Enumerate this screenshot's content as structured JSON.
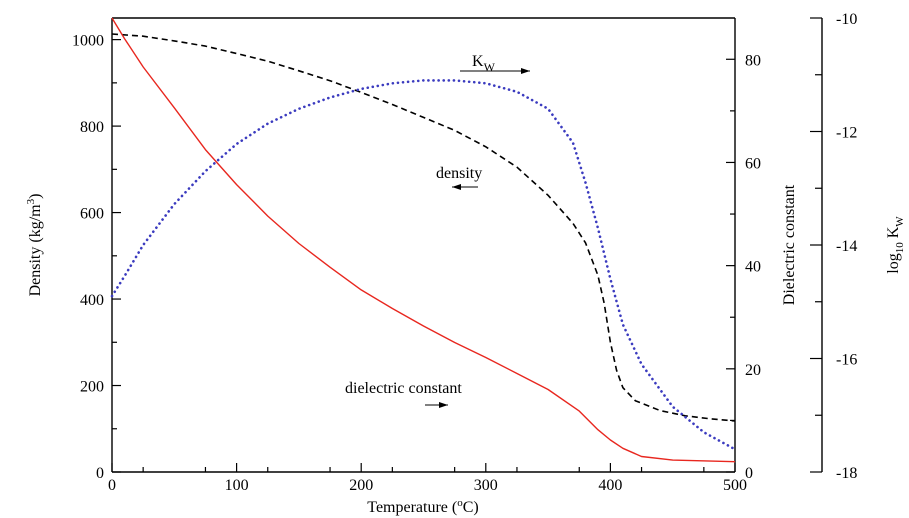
{
  "chart_data": {
    "type": "line",
    "title": "",
    "xlabel": "Temperature (°C)",
    "xlim": [
      0,
      500
    ],
    "x_ticks": [
      "0",
      "100",
      "200",
      "300",
      "400",
      "500"
    ],
    "y_left": {
      "label": "Density (kg/m³)",
      "lim": [
        0,
        1050
      ],
      "ticks": [
        "0",
        "200",
        "400",
        "600",
        "800",
        "1000"
      ]
    },
    "y_right": {
      "label": "Dielectric constant",
      "lim": [
        0,
        88
      ],
      "ticks": [
        "0",
        "20",
        "40",
        "60",
        "80"
      ]
    },
    "y_far_right": {
      "label": "log10 Kw",
      "lim": [
        -18,
        -10
      ],
      "ticks": [
        "-10",
        "-12",
        "-14",
        "-16",
        "-18"
      ]
    },
    "grid": false,
    "legend": "none",
    "series": [
      {
        "name": "density",
        "axis": "left",
        "style": "dashed",
        "color": "#000000",
        "x": [
          0,
          25,
          50,
          75,
          100,
          125,
          150,
          175,
          200,
          225,
          250,
          275,
          300,
          325,
          350,
          370,
          380,
          390,
          395,
          400,
          405,
          410,
          420,
          440,
          460,
          480,
          500
        ],
        "y": [
          1013,
          1008,
          997,
          985,
          968,
          950,
          928,
          905,
          878,
          850,
          820,
          790,
          752,
          705,
          640,
          575,
          530,
          455,
          390,
          300,
          235,
          195,
          165,
          142,
          130,
          123,
          118
        ]
      },
      {
        "name": "dielectric constant",
        "axis": "right",
        "style": "solid",
        "color": "#e8271f",
        "x": [
          0,
          10,
          25,
          50,
          75,
          100,
          125,
          150,
          175,
          200,
          225,
          250,
          275,
          300,
          325,
          350,
          375,
          390,
          400,
          410,
          425,
          450,
          500
        ],
        "y": [
          88,
          84,
          78.5,
          70.6,
          62.5,
          55.7,
          49.6,
          44.3,
          39.7,
          35.3,
          31.7,
          28.3,
          25.1,
          22.2,
          19.1,
          16,
          11.8,
          8.2,
          6.2,
          4.6,
          3,
          2.3,
          2
        ]
      },
      {
        "name": "Kw",
        "axis": "far_right",
        "style": "dotted",
        "color": "#3b3bbf",
        "x": [
          0,
          10,
          25,
          50,
          75,
          100,
          125,
          150,
          175,
          200,
          225,
          250,
          275,
          300,
          325,
          350,
          370,
          380,
          390,
          400,
          410,
          425,
          450,
          475,
          500
        ],
        "y": [
          -14.9,
          -14.55,
          -14.0,
          -13.28,
          -12.7,
          -12.22,
          -11.86,
          -11.6,
          -11.4,
          -11.25,
          -11.15,
          -11.1,
          -11.1,
          -11.15,
          -11.3,
          -11.6,
          -12.2,
          -12.9,
          -13.7,
          -14.6,
          -15.4,
          -16.1,
          -16.85,
          -17.3,
          -17.6
        ]
      }
    ],
    "annotations": [
      {
        "text": "K",
        "sub": "W",
        "arrow": "right"
      },
      {
        "text": "density",
        "arrow": "left"
      },
      {
        "text": "dielectric constant",
        "arrow": "right"
      }
    ]
  }
}
